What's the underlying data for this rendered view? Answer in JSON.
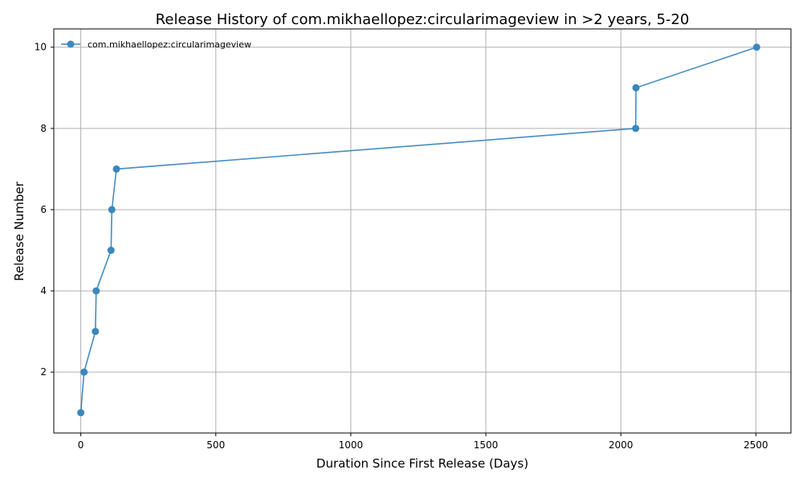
{
  "chart_data": {
    "type": "line",
    "title": "Release History of com.mikhaellopez:circularimageview in >2 years, 5-20",
    "xlabel": "Duration Since First Release (Days)",
    "ylabel": "Release Number",
    "xlim": [
      -100,
      2630
    ],
    "ylim": [
      0.5,
      10.45
    ],
    "xticks": [
      0,
      500,
      1000,
      1500,
      2000,
      2500
    ],
    "yticks": [
      2,
      4,
      6,
      8,
      10
    ],
    "grid": true,
    "legend_position": "top-left",
    "series": [
      {
        "name": "com.mikhaellopez:circularimageview",
        "color": "#3a87be",
        "marker": "circle",
        "x": [
          0,
          12,
          54,
          57,
          112,
          115,
          132,
          2055,
          2056,
          2503
        ],
        "y": [
          1,
          2,
          3,
          4,
          5,
          6,
          7,
          8,
          9,
          10
        ]
      }
    ]
  }
}
